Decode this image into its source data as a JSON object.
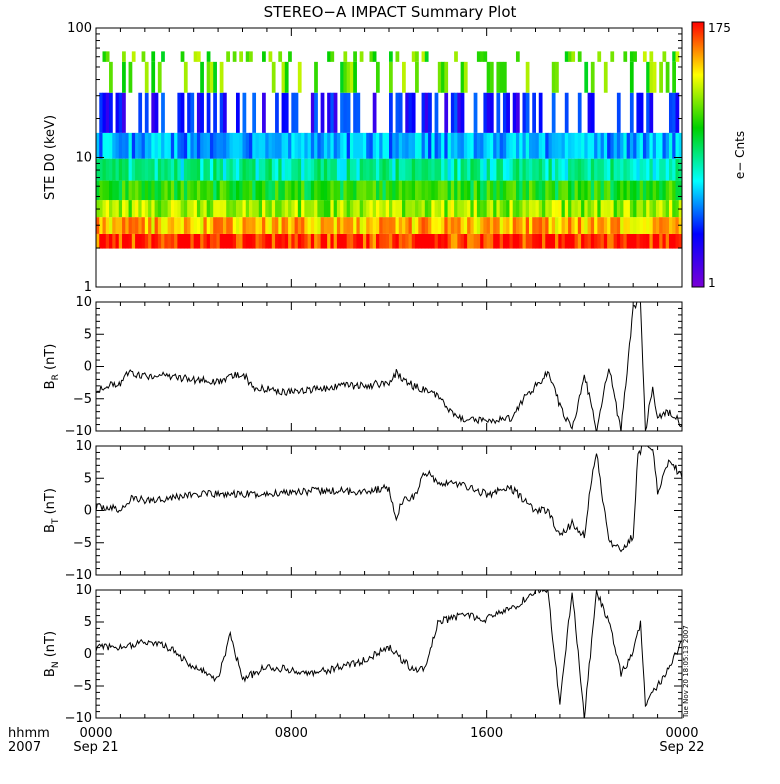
{
  "title": "STEREO−A IMPACT Summary Plot",
  "timestamp": "Tue Nov 20 18:05:13 2007",
  "x_axis": {
    "row_label_top": "hhmm",
    "row_label_bottom": "2007",
    "ticks": [
      {
        "hhmm": "0000",
        "date": "Sep 21",
        "hours": 0
      },
      {
        "hhmm": "0800",
        "date": "",
        "hours": 8
      },
      {
        "hhmm": "1600",
        "date": "",
        "hours": 16
      },
      {
        "hhmm": "0000",
        "date": "Sep 22",
        "hours": 24
      }
    ],
    "range_hours": [
      0,
      24
    ]
  },
  "colorbar": {
    "label": "e− Cnts",
    "max_label": "175",
    "min_label": "1",
    "colors": [
      "#7a00d6",
      "#0000ff",
      "#00ffff",
      "#00d000",
      "#ffff00",
      "#ff0000"
    ]
  },
  "chart_data": [
    {
      "type": "heatmap",
      "ylabel": "STE D0 (keV)",
      "yscale": "log",
      "ylim": [
        1,
        100
      ],
      "y_tick_labels": [
        "1",
        "10",
        "100"
      ],
      "x_range_hours": [
        0,
        24
      ],
      "z_range": [
        1,
        175
      ],
      "mean_counts_by_energy": [
        {
          "energy_keV": 2.2,
          "counts": 150
        },
        {
          "energy_keV": 3.0,
          "counts": 90
        },
        {
          "energy_keV": 4.0,
          "counts": 45
        },
        {
          "energy_keV": 5.5,
          "counts": 25
        },
        {
          "energy_keV": 8.0,
          "counts": 12
        },
        {
          "energy_keV": 12.0,
          "counts": 6
        },
        {
          "energy_keV": 20.0,
          "counts": 3
        },
        {
          "energy_keV": 50.0,
          "counts": 35
        },
        {
          "energy_keV": 60.0,
          "counts": 35
        }
      ]
    },
    {
      "type": "line",
      "ylabel": "B",
      "ylabel_sub": "R",
      "yunit": "(nT)",
      "ylim": [
        -10,
        10
      ],
      "y_tick_labels": [
        "−10",
        "−5",
        "0",
        "5",
        "10"
      ],
      "x_hours": [
        0,
        0.5,
        1,
        1.2,
        2,
        3,
        4,
        5,
        6,
        6.5,
        7,
        8,
        9,
        10,
        11,
        12,
        12.3,
        13,
        14,
        14.5,
        15,
        16,
        17,
        17.5,
        18,
        18.5,
        19,
        19.5,
        20,
        20.5,
        21,
        21.5,
        22,
        22.3,
        22.5,
        22.8,
        23,
        23.5,
        24
      ],
      "values": [
        -3.5,
        -3,
        -2.5,
        -1,
        -1.5,
        -1.5,
        -2,
        -2.5,
        -1,
        -3.5,
        -3.5,
        -4,
        -3.5,
        -3,
        -3,
        -2.5,
        -1,
        -3,
        -4.5,
        -7,
        -8,
        -8.5,
        -8,
        -5,
        -3,
        -1,
        -6,
        -10,
        -1,
        -10,
        0,
        -10,
        9,
        10,
        -10,
        -3,
        -8,
        -7,
        -9
      ]
    },
    {
      "type": "line",
      "ylabel": "B",
      "ylabel_sub": "T",
      "yunit": "(nT)",
      "ylim": [
        -10,
        10
      ],
      "y_tick_labels": [
        "−10",
        "−5",
        "0",
        "5",
        "10"
      ],
      "x_hours": [
        0,
        0.5,
        1,
        1.5,
        2,
        3,
        4,
        5,
        6,
        7,
        8,
        9,
        10,
        11,
        12,
        12.3,
        12.5,
        13,
        13.5,
        14,
        15,
        16,
        17,
        18,
        18.5,
        19,
        19.5,
        20,
        20.3,
        20.5,
        21,
        21.5,
        22,
        22.2,
        22.5,
        22.8,
        23,
        23.5,
        24
      ],
      "values": [
        0.5,
        0.5,
        0,
        2,
        1.5,
        2,
        2.5,
        2.5,
        2.5,
        2.5,
        3,
        3,
        3,
        3,
        3.5,
        -2,
        1.5,
        2,
        6,
        4.5,
        4,
        2.5,
        3.5,
        0,
        0,
        -4,
        -2,
        -4,
        5,
        9,
        -5,
        -6,
        -4,
        9,
        10,
        10,
        3,
        8,
        5
      ]
    },
    {
      "type": "line",
      "ylabel": "B",
      "ylabel_sub": "N",
      "yunit": "(nT)",
      "ylim": [
        -10,
        10
      ],
      "y_tick_labels": [
        "−10",
        "−5",
        "0",
        "5",
        "10"
      ],
      "x_hours": [
        0,
        1,
        2,
        3,
        4,
        5,
        5.5,
        6,
        6.5,
        7,
        8,
        9,
        10,
        11,
        12,
        13,
        13.5,
        14,
        15,
        16,
        17,
        18,
        18.5,
        19,
        19.5,
        20,
        20.5,
        21,
        21.5,
        22,
        22.3,
        22.5,
        23,
        23.5,
        24
      ],
      "values": [
        1,
        1,
        2,
        1,
        -2,
        -4,
        3,
        -4,
        -3,
        -2,
        -2.5,
        -3,
        -2,
        -1,
        1,
        -2.5,
        -2,
        5,
        6,
        5.5,
        7,
        10,
        10,
        -8,
        10,
        -10,
        10,
        5,
        -3,
        0,
        5,
        -8,
        -5,
        -2,
        2
      ]
    }
  ]
}
